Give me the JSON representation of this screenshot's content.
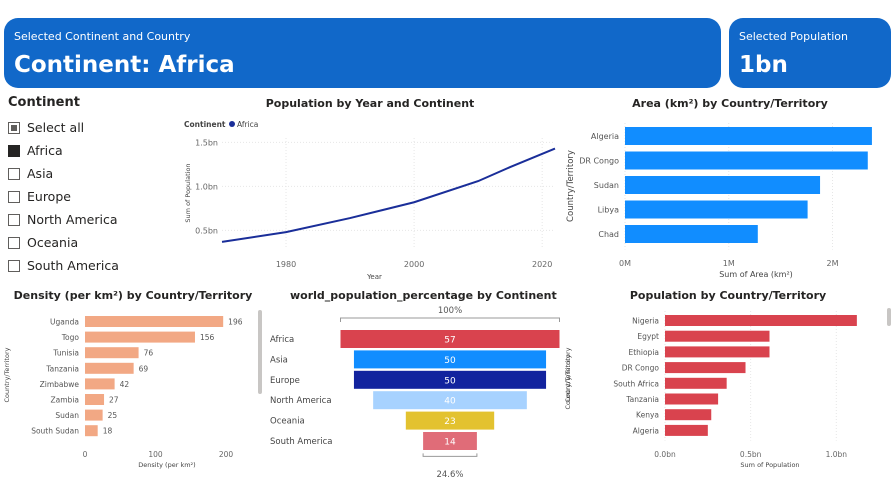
{
  "cards": {
    "selection_label": "Selected Continent and Country",
    "selection_value": "Continent: Africa",
    "population_label": "Selected Population",
    "population_value": "1bn"
  },
  "slicer": {
    "title": "Continent",
    "items": [
      {
        "label": "Select all",
        "state": "partial"
      },
      {
        "label": "Africa",
        "state": "checked"
      },
      {
        "label": "Asia",
        "state": "unchecked"
      },
      {
        "label": "Europe",
        "state": "unchecked"
      },
      {
        "label": "North America",
        "state": "unchecked"
      },
      {
        "label": "Oceania",
        "state": "unchecked"
      },
      {
        "label": "South America",
        "state": "unchecked"
      }
    ]
  },
  "colors": {
    "line": "#1a2e99",
    "area_bars": "#118dff",
    "density_bars": "#f2a884",
    "population_bars": "#d9434e",
    "card_bg": "#1168c9"
  },
  "chart_data": [
    {
      "id": "line",
      "type": "line",
      "title": "Population by Year and Continent",
      "legend_title": "Continent",
      "series": [
        {
          "name": "Africa",
          "x": [
            1970,
            1980,
            1990,
            2000,
            2010,
            2015,
            2022
          ],
          "values": [
            0.37,
            0.48,
            0.64,
            0.82,
            1.06,
            1.22,
            1.43
          ]
        }
      ],
      "xticks": [
        "1980",
        "2000",
        "2020"
      ],
      "xtick_values": [
        1980,
        2000,
        2020
      ],
      "yticks": [
        "0.5bn",
        "1.0bn",
        "1.5bn"
      ],
      "ytick_values": [
        0.5,
        1.0,
        1.5
      ],
      "xlabel": "Year",
      "ylabel": "Sum of Population",
      "xlim": [
        1970,
        2022
      ],
      "ylim": [
        0.3,
        1.55
      ]
    },
    {
      "id": "area",
      "type": "bar",
      "orientation": "horizontal",
      "title": "Area (km²) by Country/Territory",
      "categories": [
        "Algeria",
        "DR Congo",
        "Sudan",
        "Libya",
        "Chad"
      ],
      "values": [
        2.38,
        2.34,
        1.88,
        1.76,
        1.28
      ],
      "xticks": [
        "0M",
        "1M",
        "2M"
      ],
      "xtick_values": [
        0,
        1,
        2
      ],
      "xlabel": "Sum of Area (km²)",
      "ylabel": "Country/Territory",
      "xlim": [
        0,
        2.4
      ]
    },
    {
      "id": "density",
      "type": "bar",
      "orientation": "horizontal",
      "title": "Density (per km²) by Country/Territory",
      "categories": [
        "Uganda",
        "Togo",
        "Tunisia",
        "Tanzania",
        "Zimbabwe",
        "Zambia",
        "Sudan",
        "South Sudan"
      ],
      "values": [
        196,
        156,
        76,
        69,
        42,
        27,
        25,
        18
      ],
      "data_labels": [
        "196",
        "156",
        "76",
        "69",
        "42",
        "27",
        "25",
        "18"
      ],
      "xticks": [
        "0",
        "100",
        "200"
      ],
      "xtick_values": [
        0,
        100,
        200
      ],
      "xlabel": "Density (per km²)",
      "ylabel": "Country/Territory",
      "xlim": [
        0,
        200
      ]
    },
    {
      "id": "funnel",
      "type": "bar",
      "orientation": "funnel",
      "title": "world_population_percentage by Continent",
      "categories": [
        "Africa",
        "Asia",
        "Europe",
        "North America",
        "Oceania",
        "South America"
      ],
      "values": [
        57,
        50,
        50,
        40,
        23,
        14
      ],
      "data_labels": [
        "57",
        "50",
        "50",
        "40",
        "23",
        "14"
      ],
      "colors": [
        "#d9434e",
        "#118dff",
        "#12239e",
        "#a7d2ff",
        "#e3c22f",
        "#e06c78"
      ],
      "label_colors": [
        "#ffffff",
        "#ffffff",
        "#ffffff",
        "#ffffff",
        "#ffffff",
        "#ffffff"
      ],
      "top_label": "100%",
      "bottom_label": "24.6%",
      "ylabel": "Country/Territory"
    },
    {
      "id": "pop",
      "type": "bar",
      "orientation": "horizontal",
      "title": "Population by Country/Territory",
      "categories": [
        "Nigeria",
        "Egypt",
        "Ethiopia",
        "DR Congo",
        "South Africa",
        "Tanzania",
        "Kenya",
        "Algeria"
      ],
      "values": [
        1.12,
        0.61,
        0.61,
        0.47,
        0.36,
        0.31,
        0.27,
        0.25
      ],
      "xticks": [
        "0.0bn",
        "0.5bn",
        "1.0bn"
      ],
      "xtick_values": [
        0,
        0.5,
        1.0
      ],
      "xlabel": "Sum of Population",
      "ylabel": "Country/Territory",
      "xlim": [
        0,
        1.15
      ]
    }
  ]
}
